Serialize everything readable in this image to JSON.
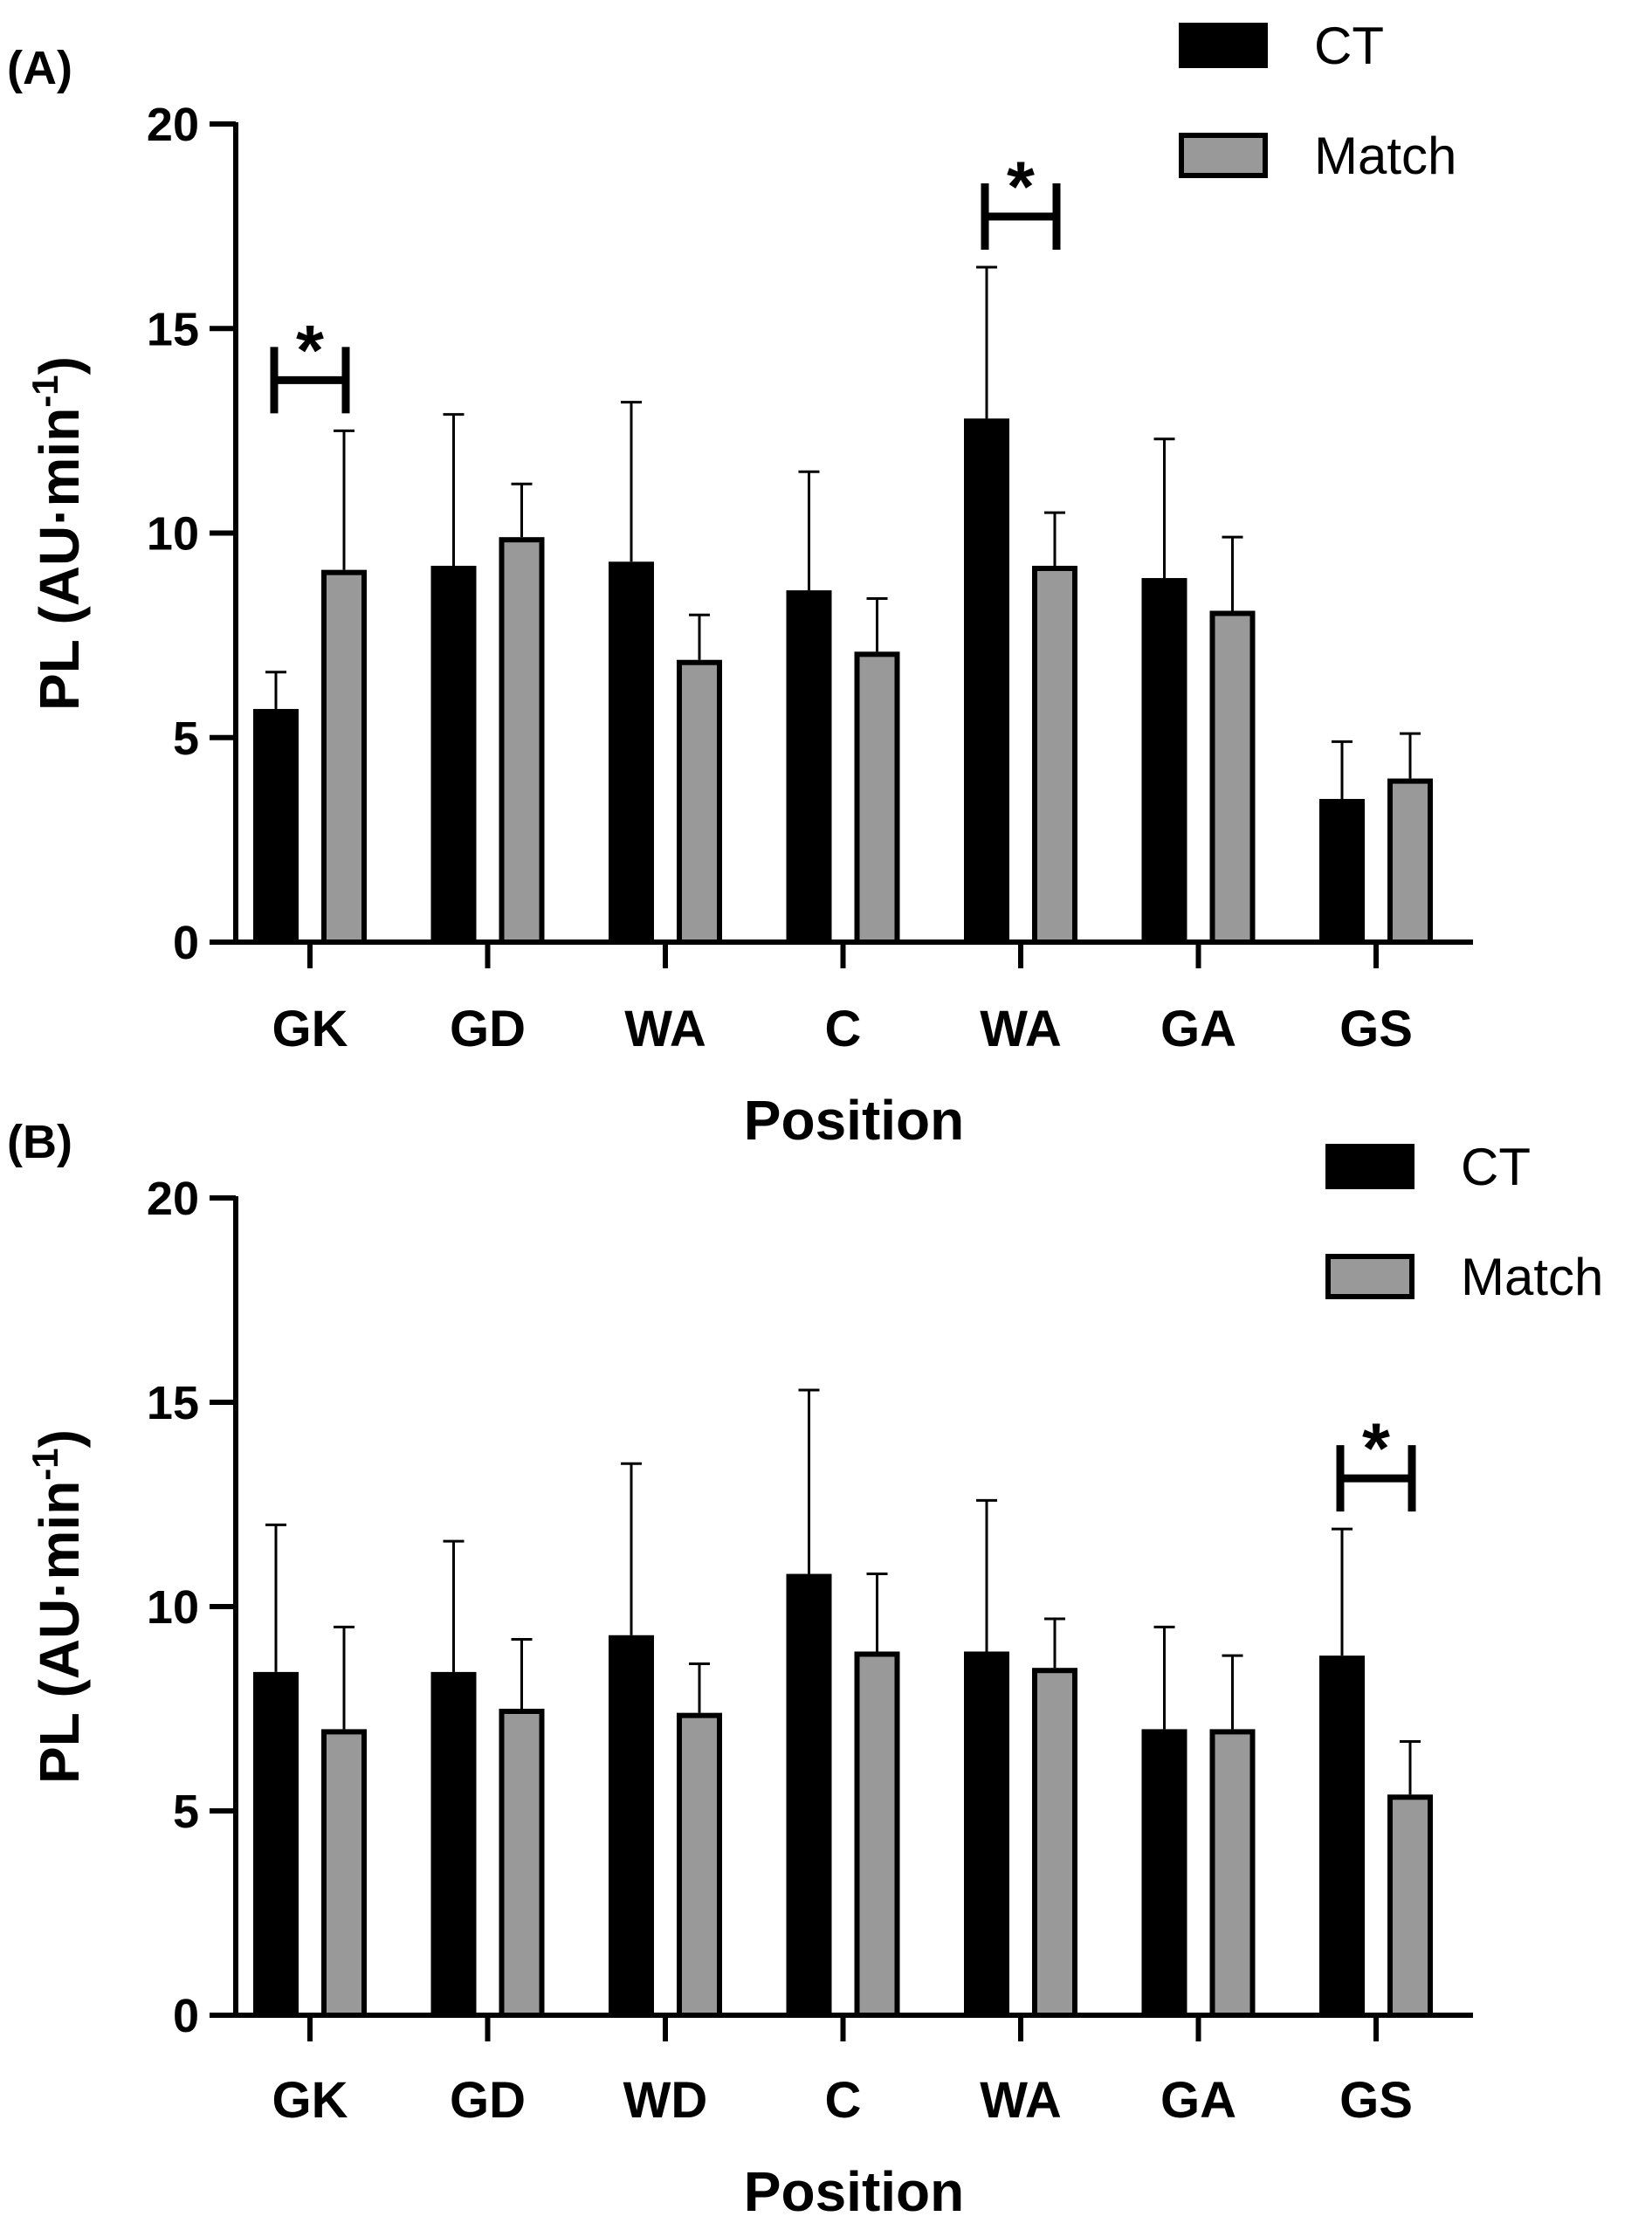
{
  "chart_data": [
    {
      "panel_label": "(A)",
      "type": "bar",
      "categories": [
        "GK",
        "GD",
        "WA",
        "C",
        "WA",
        "GA",
        "GS"
      ],
      "series": [
        {
          "name": "CT",
          "values": [
            5.7,
            9.2,
            9.3,
            8.6,
            12.8,
            8.9,
            3.5
          ],
          "errors": [
            0.9,
            3.7,
            3.9,
            2.9,
            3.7,
            3.4,
            1.4
          ]
        },
        {
          "name": "Match",
          "values": [
            9.1,
            9.9,
            6.9,
            7.1,
            9.2,
            8.1,
            4.0
          ],
          "errors": [
            3.4,
            1.3,
            1.1,
            1.3,
            1.3,
            1.8,
            1.1
          ]
        }
      ],
      "significant": [
        0,
        4
      ],
      "significance_marker": "*",
      "xlabel": "Position",
      "ylabel": "PL (AU·min",
      "ylabel_superscript": "-1",
      "ylabel_close": ")",
      "ylim": [
        0,
        20
      ],
      "yticks": [
        "0",
        "5",
        "10",
        "15",
        "20"
      ],
      "legend": {
        "position": "top-right",
        "entries": [
          "CT",
          "Match"
        ]
      }
    },
    {
      "panel_label": "(B)",
      "type": "bar",
      "categories": [
        "GK",
        "GD",
        "WD",
        "C",
        "WA",
        "GA",
        "GS"
      ],
      "series": [
        {
          "name": "CT",
          "values": [
            8.4,
            8.4,
            9.3,
            10.8,
            8.9,
            7.0,
            8.8
          ],
          "errors": [
            3.6,
            3.2,
            4.2,
            4.5,
            3.7,
            2.5,
            3.1
          ]
        },
        {
          "name": "Match",
          "values": [
            7.0,
            7.5,
            7.4,
            8.9,
            8.5,
            7.0,
            5.4
          ],
          "errors": [
            2.5,
            1.7,
            1.2,
            1.9,
            1.2,
            1.8,
            1.3
          ]
        }
      ],
      "significant": [
        6
      ],
      "significance_marker": "*",
      "xlabel": "Position",
      "ylabel": "PL (AU·min",
      "ylabel_superscript": "-1",
      "ylabel_close": ")",
      "ylim": [
        0,
        20
      ],
      "yticks": [
        "0",
        "5",
        "10",
        "15",
        "20"
      ],
      "legend": {
        "position": "top-right",
        "entries": [
          "CT",
          "Match"
        ]
      }
    }
  ],
  "colors": {
    "ct": "#000000",
    "match": "#999999",
    "match_outline": "#000000",
    "axis": "#000000"
  }
}
